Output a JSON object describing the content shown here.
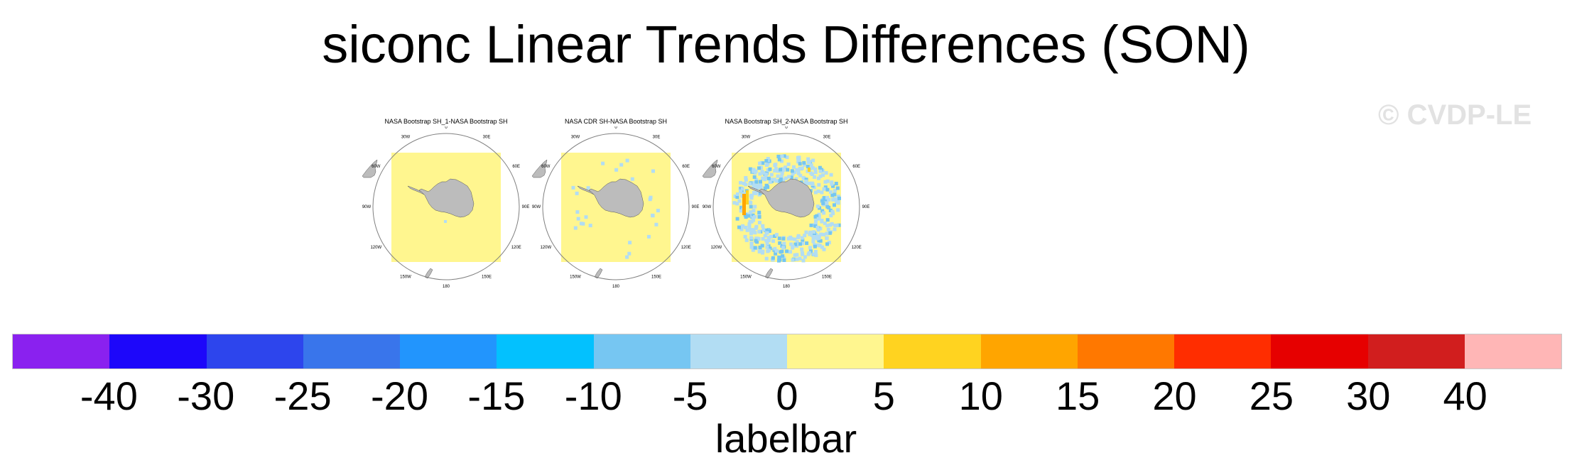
{
  "title": "siconc Linear Trends Differences (SON)",
  "watermark": "© CVDP-LE",
  "panels": [
    {
      "title": "NASA Bootstrap SH_1-NASA Bootstrap SH"
    },
    {
      "title": "NASA CDR SH-NASA Bootstrap SH"
    },
    {
      "title": "NASA Bootstrap SH_2-NASA Bootstrap SH"
    }
  ],
  "map_labels": {
    "lon": [
      "0",
      "30E",
      "60E",
      "90E",
      "120E",
      "150E",
      "180",
      "150W",
      "120W",
      "90W",
      "60W",
      "30W"
    ]
  },
  "map_colors": {
    "land": "#bcbcbc",
    "background": "#fff68f",
    "light_blue": "#b2ddf3",
    "mid_blue": "#75c6f2",
    "orange": "#ffa500",
    "gold": "#ffd320"
  },
  "colorbar": {
    "label": "labelbar",
    "ticks": [
      "-40",
      "-30",
      "-25",
      "-20",
      "-15",
      "-10",
      "-5",
      "0",
      "5",
      "10",
      "15",
      "20",
      "25",
      "30",
      "40"
    ],
    "colors": [
      "#8a21ef",
      "#1d07fa",
      "#2d45ed",
      "#3975eb",
      "#2295fd",
      "#03c1fe",
      "#76c6f2",
      "#b2ddf3",
      "#fff68f",
      "#ffd320",
      "#ffa500",
      "#ff7800",
      "#ff2d00",
      "#e60000",
      "#d11e1e",
      "#ffb6b6"
    ]
  }
}
